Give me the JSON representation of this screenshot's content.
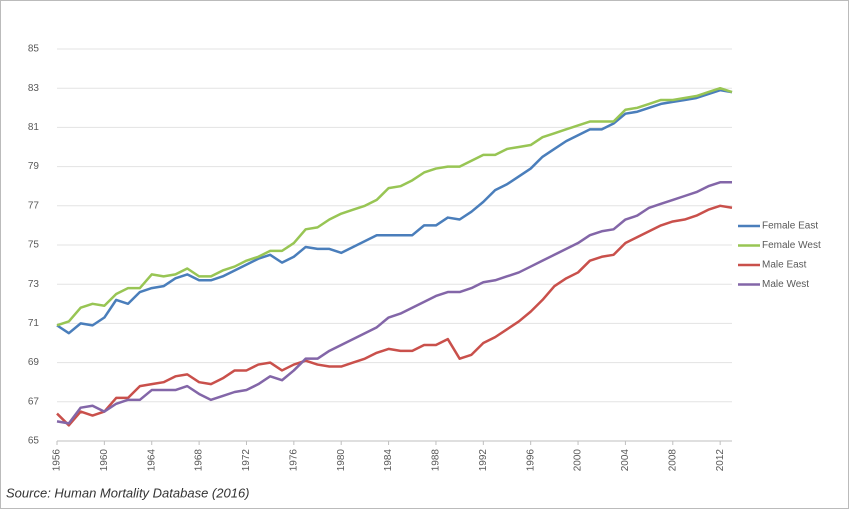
{
  "chart_data": {
    "type": "line",
    "source": "Source: Human Mortality Database (2016)",
    "x": [
      1956,
      1957,
      1958,
      1959,
      1960,
      1961,
      1962,
      1963,
      1964,
      1965,
      1966,
      1967,
      1968,
      1969,
      1970,
      1971,
      1972,
      1973,
      1974,
      1975,
      1976,
      1977,
      1978,
      1979,
      1980,
      1981,
      1982,
      1983,
      1984,
      1985,
      1986,
      1987,
      1988,
      1989,
      1990,
      1991,
      1992,
      1993,
      1994,
      1995,
      1996,
      1997,
      1998,
      1999,
      2000,
      2001,
      2002,
      2003,
      2004,
      2005,
      2006,
      2007,
      2008,
      2009,
      2010,
      2011,
      2012,
      2013
    ],
    "xlim": [
      1956,
      2013
    ],
    "xticks": [
      1956,
      1960,
      1964,
      1968,
      1972,
      1976,
      1980,
      1984,
      1988,
      1992,
      1996,
      2000,
      2004,
      2008,
      2012
    ],
    "ylim": [
      65,
      85
    ],
    "yticks": [
      65,
      67,
      69,
      71,
      73,
      75,
      77,
      79,
      81,
      83,
      85
    ],
    "grid": true,
    "legend": "right",
    "series": [
      {
        "name": "Female East",
        "color": "#4a7ebb",
        "values": [
          70.9,
          70.5,
          71.0,
          70.9,
          71.3,
          72.2,
          72.0,
          72.6,
          72.8,
          72.9,
          73.3,
          73.5,
          73.2,
          73.2,
          73.4,
          73.7,
          74.0,
          74.3,
          74.5,
          74.1,
          74.4,
          74.9,
          74.8,
          74.8,
          74.6,
          74.9,
          75.2,
          75.5,
          75.5,
          75.5,
          75.5,
          76.0,
          76.0,
          76.4,
          76.3,
          76.7,
          77.2,
          77.8,
          78.1,
          78.5,
          78.9,
          79.5,
          79.9,
          80.3,
          80.6,
          80.9,
          80.9,
          81.2,
          81.7,
          81.8,
          82.0,
          82.2,
          82.3,
          82.4,
          82.5,
          82.7,
          82.9,
          82.8
        ]
      },
      {
        "name": "Female West",
        "color": "#98c554",
        "values": [
          70.9,
          71.1,
          71.8,
          72.0,
          71.9,
          72.5,
          72.8,
          72.8,
          73.5,
          73.4,
          73.5,
          73.8,
          73.4,
          73.4,
          73.7,
          73.9,
          74.2,
          74.4,
          74.7,
          74.7,
          75.1,
          75.8,
          75.9,
          76.3,
          76.6,
          76.8,
          77.0,
          77.3,
          77.9,
          78.0,
          78.3,
          78.7,
          78.9,
          79.0,
          79.0,
          79.3,
          79.6,
          79.6,
          79.9,
          80.0,
          80.1,
          80.5,
          80.7,
          80.9,
          81.1,
          81.3,
          81.3,
          81.3,
          81.9,
          82.0,
          82.2,
          82.4,
          82.4,
          82.5,
          82.6,
          82.8,
          83.0,
          82.8
        ]
      },
      {
        "name": "Male East",
        "color": "#c9504b",
        "values": [
          66.4,
          65.8,
          66.5,
          66.3,
          66.5,
          67.2,
          67.2,
          67.8,
          67.9,
          68.0,
          68.3,
          68.4,
          68.0,
          67.9,
          68.2,
          68.6,
          68.6,
          68.9,
          69.0,
          68.6,
          68.9,
          69.1,
          68.9,
          68.8,
          68.8,
          69.0,
          69.2,
          69.5,
          69.7,
          69.6,
          69.6,
          69.9,
          69.9,
          70.2,
          69.2,
          69.4,
          70.0,
          70.3,
          70.7,
          71.1,
          71.6,
          72.2,
          72.9,
          73.3,
          73.6,
          74.2,
          74.4,
          74.5,
          75.1,
          75.4,
          75.7,
          76.0,
          76.2,
          76.3,
          76.5,
          76.8,
          77.0,
          76.9
        ]
      },
      {
        "name": "Male West",
        "color": "#8366a8",
        "values": [
          66.0,
          65.9,
          66.7,
          66.8,
          66.5,
          66.9,
          67.1,
          67.1,
          67.6,
          67.6,
          67.6,
          67.8,
          67.4,
          67.1,
          67.3,
          67.5,
          67.6,
          67.9,
          68.3,
          68.1,
          68.6,
          69.2,
          69.2,
          69.6,
          69.9,
          70.2,
          70.5,
          70.8,
          71.3,
          71.5,
          71.8,
          72.1,
          72.4,
          72.6,
          72.6,
          72.8,
          73.1,
          73.2,
          73.4,
          73.6,
          73.9,
          74.2,
          74.5,
          74.8,
          75.1,
          75.5,
          75.7,
          75.8,
          76.3,
          76.5,
          76.9,
          77.1,
          77.3,
          77.5,
          77.7,
          78.0,
          78.2,
          78.2
        ]
      }
    ]
  }
}
